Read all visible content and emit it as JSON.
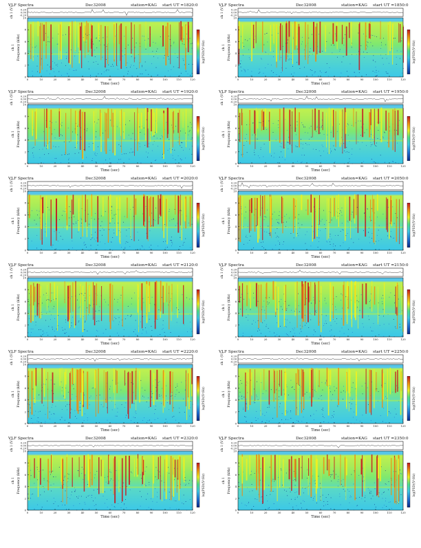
{
  "colors": {
    "spectrogram_scale": [
      "#0a2a8a",
      "#1f6fd6",
      "#3cc8e8",
      "#4fe08a",
      "#f0f020",
      "#f08a10",
      "#c8141e"
    ],
    "axis": "#111111"
  },
  "common": {
    "title_left": "VLF Spectra",
    "date": "Dec32008",
    "station": "station=KAG",
    "start_label": "start UT =",
    "ch_label": "ch 1 (V)",
    "freq_label": "Frequency (kHz)",
    "ch1_side_label": "ch 1",
    "colorbar_label": "log(PSD)(V²/Hz)",
    "time_label": "Time (sec)",
    "ch_ticks": [
      "0.20",
      "0.00",
      "-0.20"
    ],
    "freq_ticks": [
      "0",
      "2",
      "4",
      "6",
      "8",
      "10"
    ],
    "time_ticks": [
      "0",
      "10",
      "20",
      "30",
      "40",
      "50",
      "60",
      "70",
      "80",
      "90",
      "100",
      "110",
      "120"
    ]
  },
  "chart_data": [
    {
      "type": "heatmap",
      "start_ut": "1820:0",
      "xlabel": "Time (sec)",
      "ylabel": "Frequency (kHz)",
      "xlim": [
        0,
        120
      ],
      "ylim": [
        0,
        10
      ]
    },
    {
      "type": "heatmap",
      "start_ut": "1850:0",
      "xlabel": "Time (sec)",
      "ylabel": "Frequency (kHz)",
      "xlim": [
        0,
        120
      ],
      "ylim": [
        0,
        10
      ]
    },
    {
      "type": "heatmap",
      "start_ut": "1920:0",
      "xlabel": "Time (sec)",
      "ylabel": "Frequency (kHz)",
      "xlim": [
        0,
        120
      ],
      "ylim": [
        0,
        10
      ]
    },
    {
      "type": "heatmap",
      "start_ut": "1950:0",
      "xlabel": "Time (sec)",
      "ylabel": "Frequency (kHz)",
      "xlim": [
        0,
        120
      ],
      "ylim": [
        0,
        10
      ]
    },
    {
      "type": "heatmap",
      "start_ut": "2020:0",
      "xlabel": "Time (sec)",
      "ylabel": "Frequency (kHz)",
      "xlim": [
        0,
        120
      ],
      "ylim": [
        0,
        10
      ]
    },
    {
      "type": "heatmap",
      "start_ut": "2050:0",
      "xlabel": "Time (sec)",
      "ylabel": "Frequency (kHz)",
      "xlim": [
        0,
        120
      ],
      "ylim": [
        0,
        10
      ]
    },
    {
      "type": "heatmap",
      "start_ut": "2120:0",
      "xlabel": "Time (sec)",
      "ylabel": "Frequency (kHz)",
      "xlim": [
        0,
        120
      ],
      "ylim": [
        0,
        10
      ]
    },
    {
      "type": "heatmap",
      "start_ut": "2150:0",
      "xlabel": "Time (sec)",
      "ylabel": "Frequency (kHz)",
      "xlim": [
        0,
        120
      ],
      "ylim": [
        0,
        10
      ]
    },
    {
      "type": "heatmap",
      "start_ut": "2220:0",
      "xlabel": "Time (sec)",
      "ylabel": "Frequency (kHz)",
      "xlim": [
        0,
        120
      ],
      "ylim": [
        0,
        10
      ]
    },
    {
      "type": "heatmap",
      "start_ut": "2250:0",
      "xlabel": "Time (sec)",
      "ylabel": "Frequency (kHz)",
      "xlim": [
        0,
        120
      ],
      "ylim": [
        0,
        10
      ]
    },
    {
      "type": "heatmap",
      "start_ut": "2320:0",
      "xlabel": "Time (sec)",
      "ylabel": "Frequency (kHz)",
      "xlim": [
        0,
        120
      ],
      "ylim": [
        0,
        10
      ]
    },
    {
      "type": "heatmap",
      "start_ut": "2350:0",
      "xlabel": "Time (sec)",
      "ylabel": "Frequency (kHz)",
      "xlim": [
        0,
        120
      ],
      "ylim": [
        0,
        10
      ]
    }
  ]
}
